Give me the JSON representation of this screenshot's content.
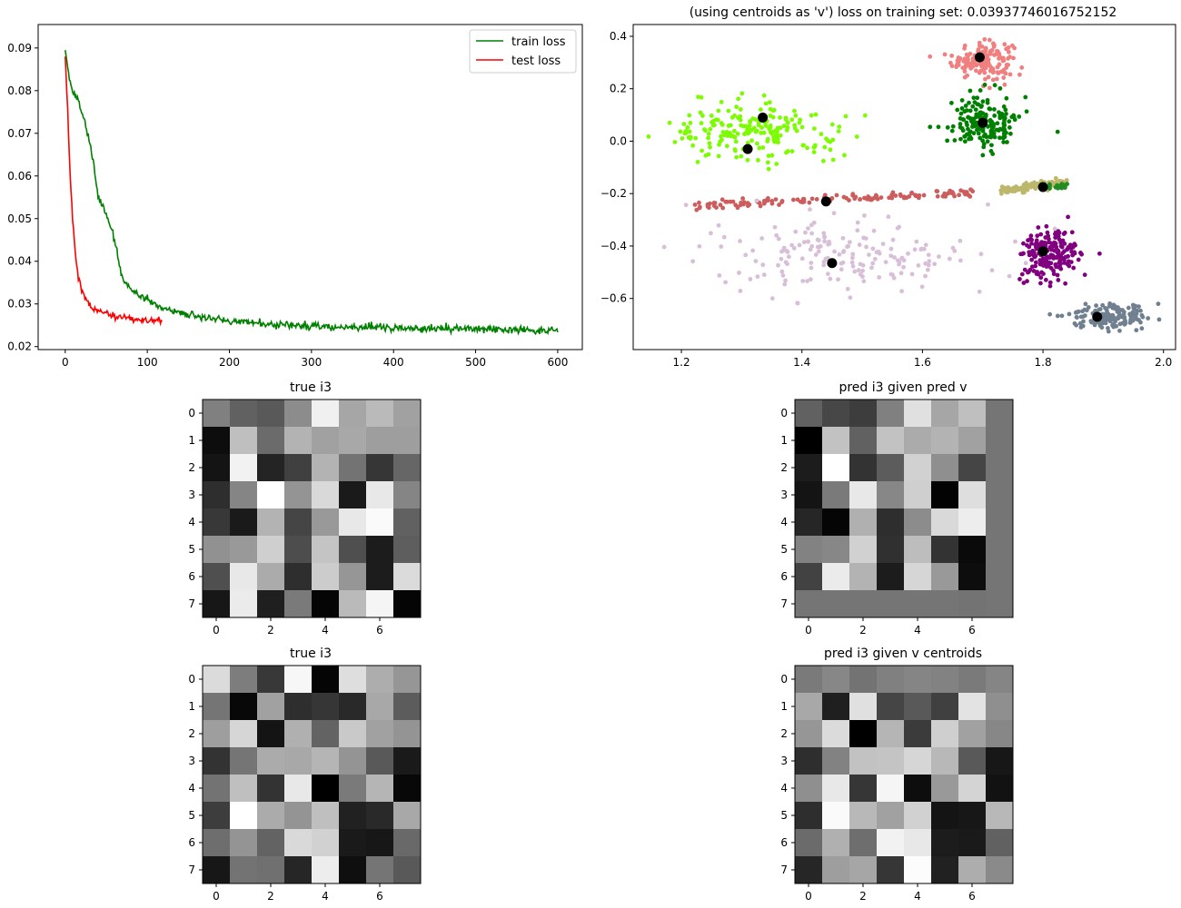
{
  "figure": {
    "background": "#ffffff"
  },
  "chart_data": [
    {
      "id": "loss",
      "type": "line",
      "title": "",
      "xlabel": "",
      "ylabel": "",
      "xlim": [
        -33,
        630
      ],
      "ylim": [
        0.0193,
        0.0955
      ],
      "xticks": [
        0,
        100,
        200,
        300,
        400,
        500,
        600
      ],
      "xtick_labels": [
        "0",
        "100",
        "200",
        "300",
        "400",
        "500",
        "600"
      ],
      "yticks": [
        0.02,
        0.03,
        0.04,
        0.05,
        0.06,
        0.07,
        0.08,
        0.09
      ],
      "ytick_labels": [
        "0.02",
        "0.03",
        "0.04",
        "0.05",
        "0.06",
        "0.07",
        "0.08",
        "0.09"
      ],
      "legend_position": "upper right",
      "series": [
        {
          "name": "train loss",
          "color": "#008000",
          "x": [
            0,
            5,
            10,
            15,
            20,
            25,
            30,
            35,
            40,
            45,
            50,
            55,
            60,
            65,
            70,
            80,
            90,
            100,
            120,
            140,
            160,
            180,
            200,
            250,
            300,
            350,
            400,
            450,
            500,
            550,
            600
          ],
          "y": [
            0.0895,
            0.083,
            0.0795,
            0.078,
            0.0755,
            0.0715,
            0.0675,
            0.0625,
            0.0555,
            0.053,
            0.0515,
            0.048,
            0.045,
            0.0395,
            0.036,
            0.0335,
            0.032,
            0.031,
            0.029,
            0.028,
            0.0272,
            0.0265,
            0.026,
            0.0253,
            0.0248,
            0.0246,
            0.0245,
            0.0243,
            0.0241,
            0.024,
            0.0238
          ],
          "noise": 0.0008
        },
        {
          "name": "test loss",
          "color": "#ff0000",
          "x": [
            0,
            3,
            6,
            9,
            12,
            16,
            20,
            25,
            30,
            40,
            50,
            60,
            80,
            100,
            118
          ],
          "y": [
            0.088,
            0.075,
            0.06,
            0.05,
            0.042,
            0.036,
            0.033,
            0.0315,
            0.0295,
            0.0285,
            0.0278,
            0.027,
            0.0265,
            0.0262,
            0.026
          ],
          "noise": 0.0007
        }
      ]
    },
    {
      "id": "scatter",
      "type": "scatter",
      "title": "(using centroids as 'v') loss on training set: 0.03937746016752152",
      "xlabel": "",
      "ylabel": "",
      "xlim": [
        1.12,
        2.02
      ],
      "ylim": [
        -0.795,
        0.445
      ],
      "xticks": [
        1.2,
        1.4,
        1.6,
        1.8,
        2.0
      ],
      "xtick_labels": [
        "1.2",
        "1.4",
        "1.6",
        "1.8",
        "2.0"
      ],
      "yticks": [
        -0.6,
        -0.4,
        -0.2,
        0.0,
        0.2,
        0.4
      ],
      "ytick_labels": [
        "−0.6",
        "−0.4",
        "−0.2",
        "0.0",
        "0.2",
        "0.4"
      ],
      "clusters": [
        {
          "color": "#f08080",
          "count": 160,
          "center": [
            1.7,
            0.31
          ],
          "spread": [
            0.025,
            0.035
          ]
        },
        {
          "color": "#7cfc00",
          "count": 200,
          "center": [
            1.32,
            0.04
          ],
          "spread": [
            0.07,
            0.055
          ]
        },
        {
          "color": "#008000",
          "count": 180,
          "center": [
            1.7,
            0.07
          ],
          "spread": [
            0.028,
            0.055
          ]
        },
        {
          "color": "#cd5c5c",
          "count": 130,
          "line": [
            [
              1.22,
              -0.245
            ],
            [
              1.69,
              -0.195
            ]
          ],
          "spread": [
            0.0,
            0.007
          ]
        },
        {
          "color": "#bdb76b",
          "count": 110,
          "line": [
            [
              1.73,
              -0.19
            ],
            [
              1.84,
              -0.155
            ]
          ],
          "spread": [
            0.0,
            0.008
          ]
        },
        {
          "color": "#228b22",
          "count": 30,
          "line": [
            [
              1.8,
              -0.18
            ],
            [
              1.84,
              -0.17
            ]
          ],
          "spread": [
            0.0,
            0.005
          ]
        },
        {
          "color": "#800080",
          "count": 190,
          "center": [
            1.81,
            -0.43
          ],
          "spread": [
            0.025,
            0.05
          ]
        },
        {
          "color": "#d8bfd8",
          "count": 180,
          "center": [
            1.48,
            -0.45
          ],
          "spread": [
            0.12,
            0.07
          ]
        },
        {
          "color": "#708090",
          "count": 160,
          "center": [
            1.91,
            -0.67
          ],
          "spread": [
            0.03,
            0.022
          ]
        }
      ],
      "centroids": [
        [
          1.695,
          0.32
        ],
        [
          1.335,
          0.09
        ],
        [
          1.31,
          -0.03
        ],
        [
          1.7,
          0.07
        ],
        [
          1.44,
          -0.23
        ],
        [
          1.8,
          -0.175
        ],
        [
          1.8,
          -0.42
        ],
        [
          1.45,
          -0.465
        ],
        [
          1.89,
          -0.67
        ]
      ],
      "centroid_color": "#000000"
    },
    {
      "id": "heatmap-1",
      "type": "heatmap",
      "title": "true i3",
      "ticks": [
        0,
        2,
        4,
        6
      ],
      "yticks": [
        0,
        1,
        2,
        3,
        4,
        5,
        6,
        7
      ],
      "values": [
        [
          0.5,
          0.38,
          0.35,
          0.55,
          0.94,
          0.65,
          0.73,
          0.63
        ],
        [
          0.05,
          0.75,
          0.42,
          0.7,
          0.63,
          0.66,
          0.62,
          0.62
        ],
        [
          0.08,
          0.95,
          0.14,
          0.25,
          0.7,
          0.45,
          0.21,
          0.4
        ],
        [
          0.18,
          0.52,
          1.0,
          0.58,
          0.85,
          0.1,
          0.91,
          0.52
        ],
        [
          0.22,
          0.1,
          0.7,
          0.27,
          0.6,
          0.91,
          0.98,
          0.38
        ],
        [
          0.57,
          0.6,
          0.81,
          0.3,
          0.77,
          0.31,
          0.11,
          0.37
        ],
        [
          0.31,
          0.91,
          0.67,
          0.18,
          0.8,
          0.59,
          0.11,
          0.86
        ],
        [
          0.09,
          0.92,
          0.12,
          0.48,
          0.02,
          0.73,
          0.96,
          0.02
        ]
      ]
    },
    {
      "id": "heatmap-2",
      "type": "heatmap",
      "title": "pred i3 given pred v",
      "ticks": [
        0,
        2,
        4,
        6
      ],
      "yticks": [
        0,
        1,
        2,
        3,
        4,
        5,
        6,
        7
      ],
      "values": [
        [
          0.38,
          0.28,
          0.24,
          0.5,
          0.88,
          0.65,
          0.75,
          0.46
        ],
        [
          0.0,
          0.76,
          0.38,
          0.76,
          0.67,
          0.7,
          0.63,
          0.46
        ],
        [
          0.11,
          1.0,
          0.2,
          0.36,
          0.82,
          0.56,
          0.27,
          0.46
        ],
        [
          0.08,
          0.48,
          0.91,
          0.53,
          0.81,
          0.01,
          0.87,
          0.46
        ],
        [
          0.15,
          0.02,
          0.69,
          0.18,
          0.55,
          0.85,
          0.93,
          0.46
        ],
        [
          0.51,
          0.53,
          0.82,
          0.19,
          0.74,
          0.2,
          0.04,
          0.46
        ],
        [
          0.26,
          0.92,
          0.7,
          0.11,
          0.84,
          0.6,
          0.05,
          0.46
        ],
        [
          0.46,
          0.46,
          0.46,
          0.46,
          0.46,
          0.46,
          0.45,
          0.46
        ]
      ]
    },
    {
      "id": "heatmap-3",
      "type": "heatmap",
      "title": "true i3",
      "ticks": [
        0,
        2,
        4,
        6
      ],
      "yticks": [
        0,
        1,
        2,
        3,
        4,
        5,
        6,
        7
      ],
      "values": [
        [
          0.86,
          0.49,
          0.22,
          0.97,
          0.02,
          0.87,
          0.68,
          0.59
        ],
        [
          0.46,
          0.03,
          0.63,
          0.18,
          0.21,
          0.16,
          0.66,
          0.36
        ],
        [
          0.62,
          0.84,
          0.08,
          0.69,
          0.39,
          0.79,
          0.63,
          0.58
        ],
        [
          0.2,
          0.46,
          0.67,
          0.66,
          0.71,
          0.58,
          0.35,
          0.1
        ],
        [
          0.45,
          0.75,
          0.2,
          0.91,
          0.0,
          0.48,
          0.71,
          0.03
        ],
        [
          0.24,
          1.0,
          0.67,
          0.58,
          0.75,
          0.13,
          0.16,
          0.66
        ],
        [
          0.43,
          0.58,
          0.39,
          0.85,
          0.82,
          0.1,
          0.09,
          0.41
        ],
        [
          0.09,
          0.45,
          0.44,
          0.15,
          0.93,
          0.06,
          0.46,
          0.35
        ]
      ]
    },
    {
      "id": "heatmap-4",
      "type": "heatmap",
      "title": "pred i3 given v centroids",
      "ticks": [
        0,
        2,
        4,
        6
      ],
      "yticks": [
        0,
        1,
        2,
        3,
        4,
        5,
        6,
        7
      ],
      "values": [
        [
          0.48,
          0.53,
          0.45,
          0.5,
          0.52,
          0.51,
          0.48,
          0.52
        ],
        [
          0.66,
          0.12,
          0.88,
          0.27,
          0.35,
          0.25,
          0.89,
          0.56
        ],
        [
          0.59,
          0.86,
          0.0,
          0.71,
          0.23,
          0.81,
          0.63,
          0.53
        ],
        [
          0.18,
          0.51,
          0.76,
          0.77,
          0.84,
          0.72,
          0.35,
          0.09
        ],
        [
          0.56,
          0.91,
          0.21,
          0.96,
          0.05,
          0.6,
          0.83,
          0.07
        ],
        [
          0.18,
          0.98,
          0.72,
          0.63,
          0.82,
          0.08,
          0.09,
          0.72
        ],
        [
          0.42,
          0.69,
          0.43,
          0.95,
          0.91,
          0.11,
          0.1,
          0.38
        ],
        [
          0.15,
          0.62,
          0.65,
          0.21,
          0.99,
          0.13,
          0.68,
          0.54
        ]
      ]
    }
  ]
}
